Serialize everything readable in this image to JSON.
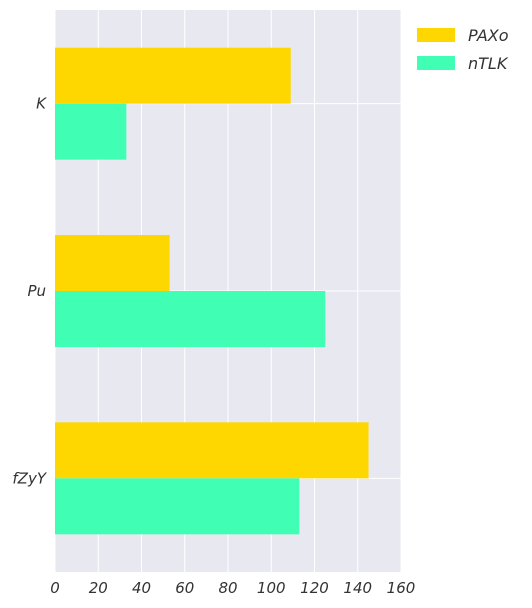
{
  "chart_data": {
    "type": "bar",
    "orientation": "horizontal",
    "categories": [
      "K",
      "Pu",
      "fZyY"
    ],
    "series": [
      {
        "name": "PAXo",
        "values": [
          109,
          53,
          145
        ],
        "color": "#ffd700"
      },
      {
        "name": "nTLK",
        "values": [
          33,
          125,
          113
        ],
        "color": "#40ffb4"
      }
    ],
    "xlim": [
      0,
      160
    ],
    "xticks": [
      "0",
      "20",
      "40",
      "60",
      "80",
      "100",
      "120",
      "140",
      "160"
    ],
    "title": "",
    "xlabel": "",
    "ylabel": "",
    "grid": true,
    "legend_position": "top-right",
    "plot_background": "#e8e8f0",
    "grid_color": "#ffffff"
  }
}
